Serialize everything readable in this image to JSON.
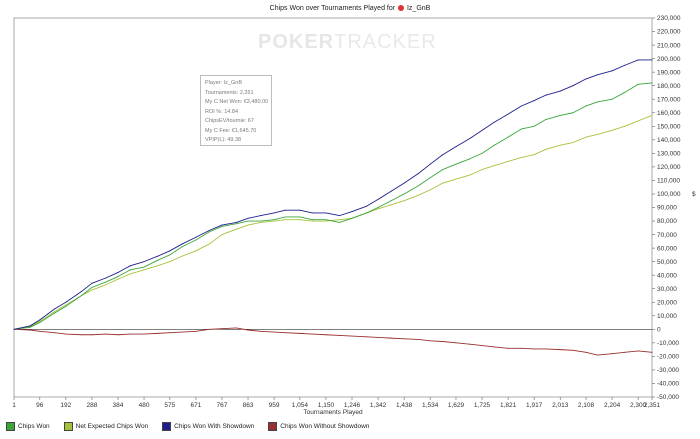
{
  "window": {
    "title": "Chips Won over Tournaments Played for",
    "player_name": "Iz_GnB",
    "watermark_a": "POKER",
    "watermark_b": "TRACKER"
  },
  "tooltip": {
    "lines": [
      "Player: Iz_GnB",
      "Tournaments: 2,351",
      "My C Net Won: €3,480.00",
      "ROI %: 14.84",
      "ChipsEV/tournie: 67",
      "My C Fee: €1,645.70",
      "VPIP(L): 49.38"
    ]
  },
  "axis_symbol": "$",
  "chart_data": {
    "type": "line",
    "title": "Chips Won over Tournaments Played for Iz_GnB",
    "xlabel": "Tournaments Played",
    "ylabel": "",
    "xlim": [
      1,
      2351
    ],
    "ylim": [
      -50000,
      230000
    ],
    "x_ticks": [
      "1",
      "96",
      "192",
      "288",
      "384",
      "480",
      "575",
      "671",
      "767",
      "863",
      "959",
      "1,054",
      "1,150",
      "1,246",
      "1,342",
      "1,438",
      "1,534",
      "1,629",
      "1,725",
      "1,821",
      "1,917",
      "2,013",
      "2,108",
      "2,204",
      "2,300",
      "2,351"
    ],
    "x_tick_values": [
      1,
      96,
      192,
      288,
      384,
      480,
      575,
      671,
      767,
      863,
      959,
      1054,
      1150,
      1246,
      1342,
      1438,
      1534,
      1629,
      1725,
      1821,
      1917,
      2013,
      2108,
      2204,
      2300,
      2351
    ],
    "y_ticks": [
      "-50,000",
      "-40,000",
      "-30,000",
      "-20,000",
      "-10,000",
      "0",
      "10,000",
      "20,000",
      "30,000",
      "40,000",
      "50,000",
      "60,000",
      "70,000",
      "80,000",
      "90,000",
      "100,000",
      "110,000",
      "120,000",
      "130,000",
      "140,000",
      "150,000",
      "160,000",
      "170,000",
      "180,000",
      "190,000",
      "200,000",
      "210,000",
      "220,000",
      "230,000"
    ],
    "y_tick_values": [
      -50000,
      -40000,
      -30000,
      -20000,
      -10000,
      0,
      10000,
      20000,
      30000,
      40000,
      50000,
      60000,
      70000,
      80000,
      90000,
      100000,
      110000,
      120000,
      130000,
      140000,
      150000,
      160000,
      170000,
      180000,
      190000,
      200000,
      210000,
      220000,
      230000
    ],
    "grid": false,
    "legend_position": "bottom-left",
    "x": [
      1,
      60,
      96,
      150,
      192,
      250,
      288,
      340,
      384,
      430,
      480,
      530,
      575,
      620,
      671,
      720,
      767,
      820,
      863,
      910,
      959,
      1000,
      1054,
      1100,
      1150,
      1200,
      1246,
      1300,
      1342,
      1390,
      1438,
      1490,
      1534,
      1580,
      1629,
      1680,
      1725,
      1770,
      1821,
      1870,
      1917,
      1960,
      2013,
      2060,
      2108,
      2150,
      2204,
      2250,
      2300,
      2351
    ],
    "series": [
      {
        "name": "Chips Won",
        "color": "#3aa63a",
        "values": [
          0,
          1500,
          5000,
          12000,
          17000,
          25000,
          31000,
          35000,
          39000,
          44000,
          46000,
          51000,
          55000,
          61000,
          66000,
          72000,
          76000,
          78000,
          80000,
          80000,
          81000,
          83000,
          83000,
          81000,
          81000,
          79000,
          82000,
          86000,
          90000,
          95000,
          100000,
          106000,
          112000,
          118000,
          122000,
          126000,
          130000,
          136000,
          142000,
          148000,
          150000,
          155000,
          158000,
          160000,
          165000,
          168000,
          170000,
          175000,
          181000,
          182000
        ]
      },
      {
        "name": "Net Expected Chips Won",
        "color": "#a6c23a",
        "values": [
          0,
          2000,
          6000,
          13000,
          18000,
          25000,
          29000,
          33000,
          37000,
          41000,
          44000,
          47000,
          50000,
          54000,
          58000,
          63000,
          70000,
          74000,
          77000,
          79000,
          80000,
          81000,
          81000,
          80000,
          80000,
          81000,
          82000,
          86000,
          89000,
          92000,
          95000,
          99000,
          103000,
          108000,
          111000,
          114000,
          118000,
          121000,
          124000,
          127000,
          129000,
          133000,
          136000,
          138000,
          142000,
          144000,
          147000,
          150000,
          154000,
          158000
        ]
      },
      {
        "name": "Chips Won With Showdown",
        "color": "#1e1e8c",
        "values": [
          0,
          2500,
          7000,
          15000,
          20000,
          28000,
          34000,
          38000,
          42000,
          47000,
          50000,
          54000,
          58000,
          63000,
          68000,
          73000,
          77000,
          79000,
          82000,
          84000,
          86000,
          88000,
          88000,
          86000,
          86000,
          84000,
          87000,
          91000,
          96000,
          102000,
          108000,
          115000,
          122000,
          129000,
          135000,
          141000,
          147000,
          153000,
          159000,
          165000,
          169000,
          173000,
          176000,
          180000,
          185000,
          188000,
          191000,
          195000,
          199000,
          199000
        ]
      },
      {
        "name": "Chips Won Without Showdown",
        "color": "#9b2f2f",
        "values": [
          0,
          -500,
          -1500,
          -2500,
          -3500,
          -4000,
          -4000,
          -3500,
          -4000,
          -3500,
          -3500,
          -3000,
          -2500,
          -2000,
          -1500,
          0,
          500,
          1000,
          -500,
          -1500,
          -2000,
          -2500,
          -3000,
          -3500,
          -4000,
          -4500,
          -5000,
          -5500,
          -6000,
          -6500,
          -7000,
          -7500,
          -8500,
          -9000,
          -10000,
          -11000,
          -12000,
          -13000,
          -14000,
          -14000,
          -14500,
          -14500,
          -15000,
          -15500,
          -17000,
          -19000,
          -18000,
          -17000,
          -16000,
          -17000
        ]
      }
    ]
  }
}
